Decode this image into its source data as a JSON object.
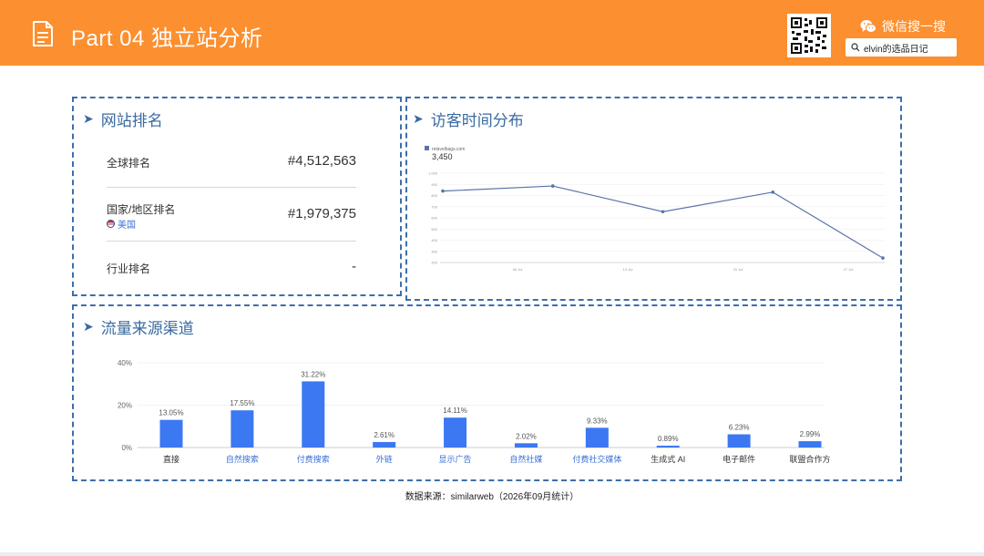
{
  "header": {
    "title": "Part 04 独立站分析",
    "wechat_label": "微信搜一搜",
    "search_text": "elvin的选品日记",
    "background_color": "#fc8f2f"
  },
  "ranking": {
    "title": "网站排名",
    "global_label": "全球排名",
    "global_value": "#4,512,563",
    "country_label": "国家/地区排名",
    "country_name": "美国",
    "country_value": "#1,979,375",
    "industry_label": "行业排名",
    "industry_value": "-"
  },
  "visitors": {
    "title": "访客时间分布",
    "legend_name": "relavelbags.com",
    "headline_value": "3,450",
    "chart_data": {
      "type": "line",
      "series": [
        {
          "name": "relavelbags.com",
          "values": [
            840,
            885,
            655,
            830,
            240
          ]
        }
      ],
      "y_ticks": [
        "1,000",
        "900",
        "800",
        "700",
        "600",
        "500",
        "400",
        "300",
        "200"
      ],
      "x_ticks": [
        "06 Jul",
        "13 Jul",
        "20 Jul",
        "27 Jul"
      ],
      "ylim": [
        200,
        1000
      ],
      "grid": true,
      "line_color": "#5b73a8"
    }
  },
  "traffic": {
    "title": "流量来源渠道",
    "chart_data": {
      "type": "bar",
      "categories": [
        "直接",
        "自然搜索",
        "付费搜索",
        "外链",
        "显示广告",
        "自然社媒",
        "付费社交媒体",
        "生成式 AI",
        "电子邮件",
        "联盟合作方"
      ],
      "values": [
        13.05,
        17.55,
        31.22,
        2.61,
        14.11,
        2.02,
        9.33,
        0.89,
        6.23,
        2.99
      ],
      "value_labels": [
        "13.05%",
        "17.55%",
        "31.22%",
        "2.61%",
        "14.11%",
        "2.02%",
        "9.33%",
        "0.89%",
        "6.23%",
        "2.99%"
      ],
      "y_ticks": [
        "40%",
        "20%",
        "0%"
      ],
      "ylim": [
        0,
        40
      ],
      "bar_color": "#3b78f2",
      "label_colors": [
        "#333333",
        "#3b6fd6",
        "#3b6fd6",
        "#3b6fd6",
        "#3b6fd6",
        "#3b6fd6",
        "#3b6fd6",
        "#333333",
        "#333333",
        "#333333"
      ]
    }
  },
  "footer": {
    "source": "数据来源：similarweb（2026年09月统计）"
  }
}
